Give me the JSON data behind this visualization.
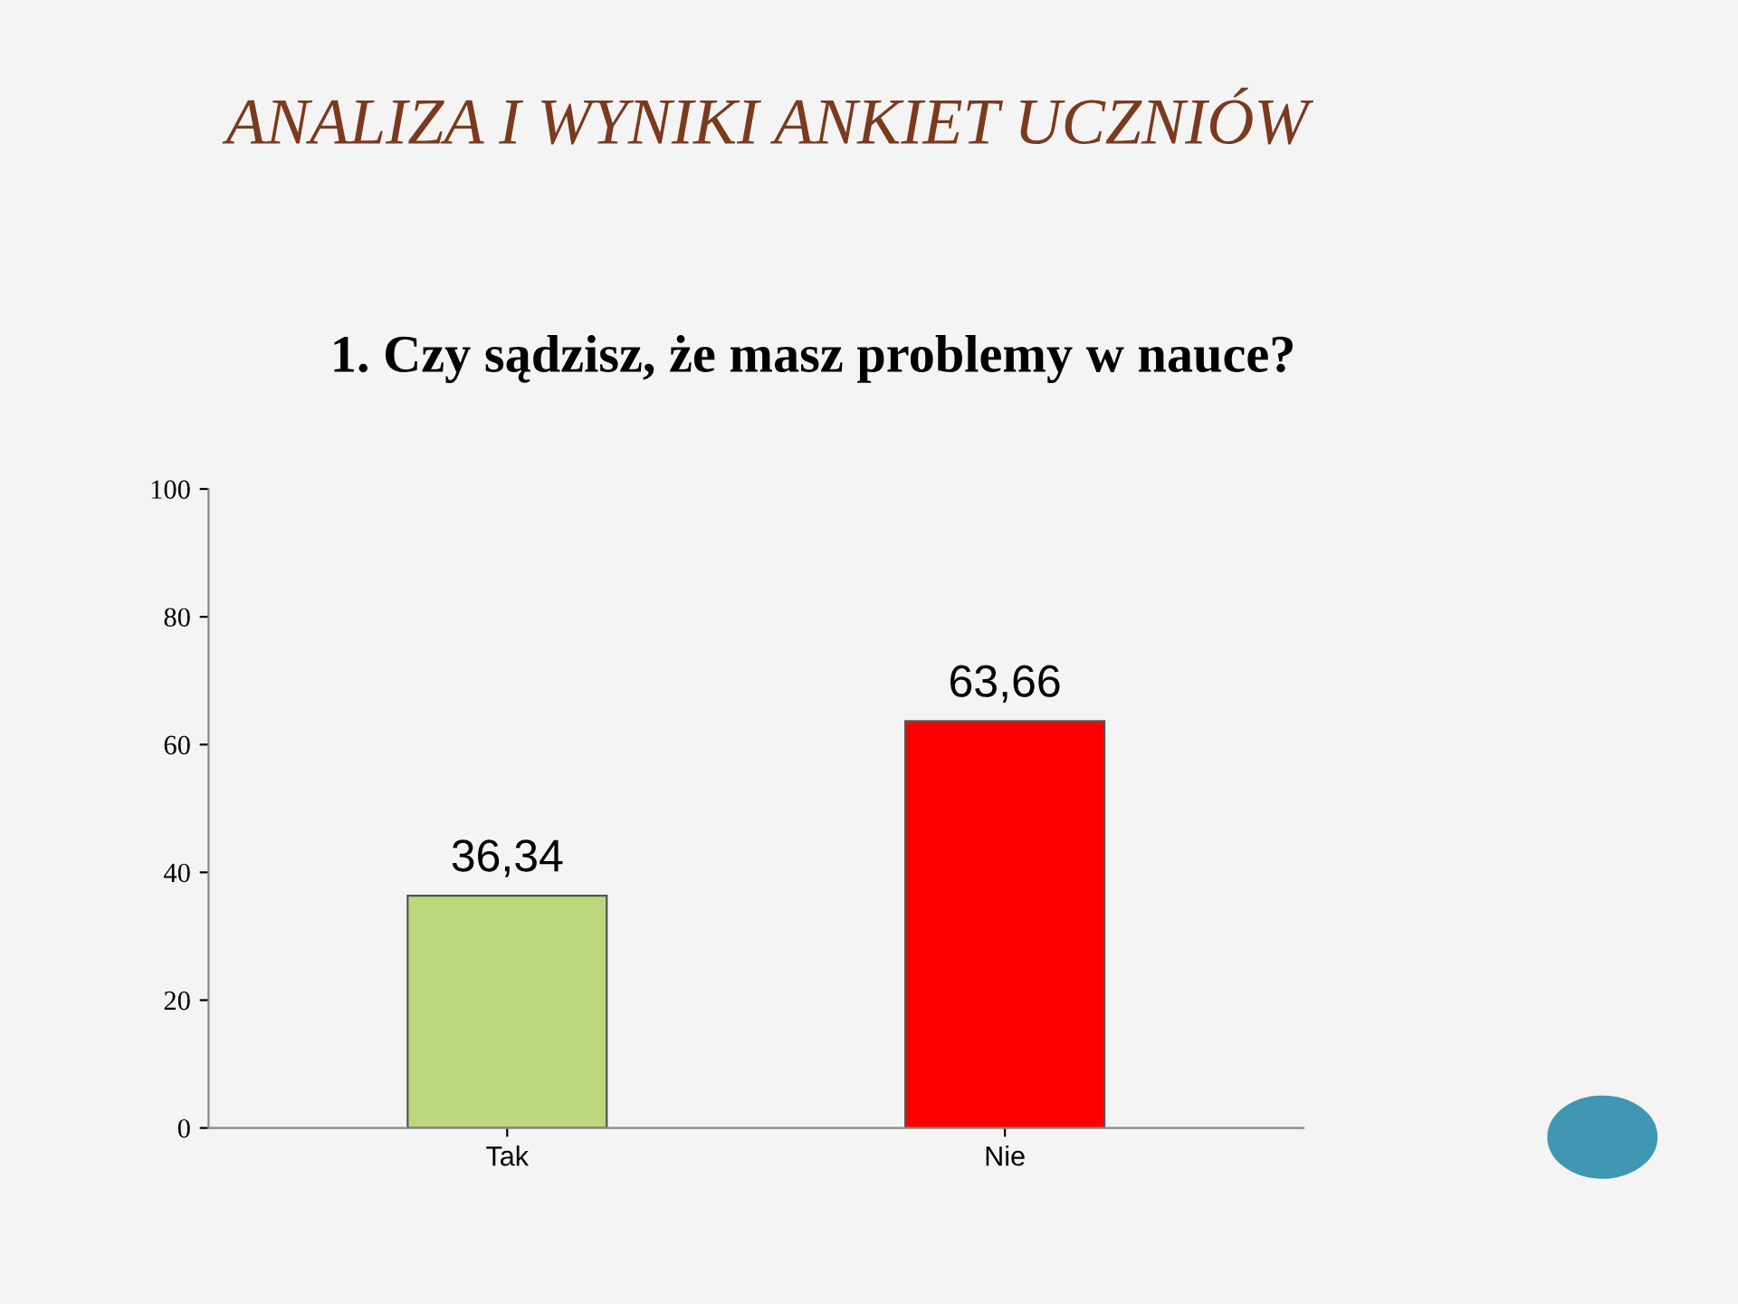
{
  "chart_data": {
    "type": "bar",
    "title": "ANALIZA I WYNIKI ANKIET UCZNIÓW",
    "subtitle": "1. Czy sądzisz, że masz problemy w nauce?",
    "categories": [
      "Tak",
      "Nie"
    ],
    "values": [
      36.34,
      63.66
    ],
    "colors": [
      "#bcd87c",
      "#ff0000"
    ],
    "value_labels": [
      "36,34",
      "63,66"
    ],
    "ylim": [
      0,
      100
    ],
    "yticks": [
      0,
      20,
      40,
      60,
      80,
      100
    ],
    "grid": false,
    "legend": false
  }
}
